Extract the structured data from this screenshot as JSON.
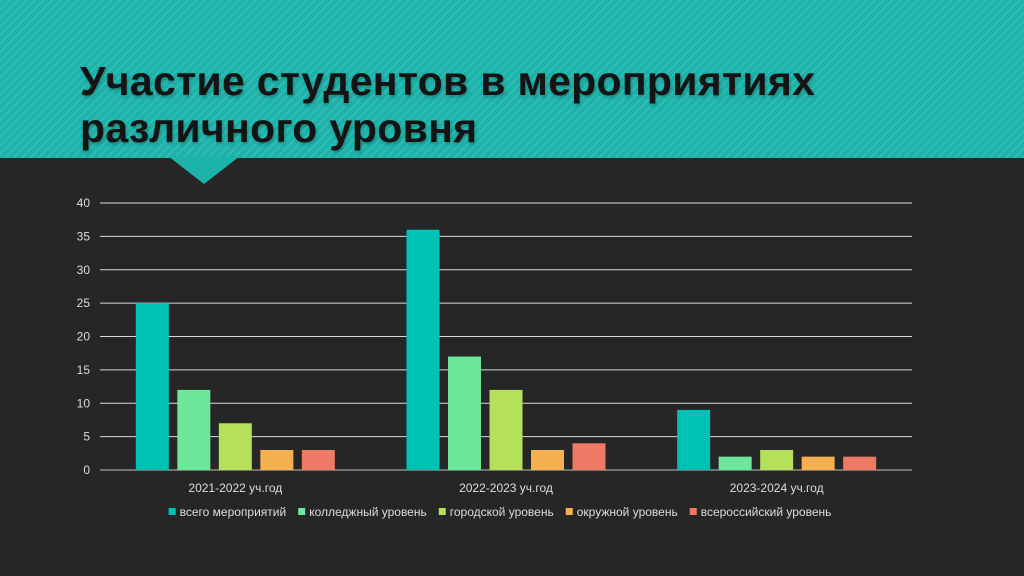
{
  "slide": {
    "title": "Участие студентов в мероприятиях различного уровня"
  },
  "colors": {
    "header_bg": "#1bb3aa",
    "background": "#262626",
    "text": "#dddddd"
  },
  "chart_data": {
    "type": "bar",
    "title": "",
    "xlabel": "",
    "ylabel": "",
    "ylim": [
      0,
      40
    ],
    "yticks": [
      0,
      5,
      10,
      15,
      20,
      25,
      30,
      35,
      40
    ],
    "grid": true,
    "legend_position": "bottom",
    "categories": [
      "2021-2022 уч.год",
      "2022-2023 уч.год",
      "2023-2024 уч.год"
    ],
    "series": [
      {
        "name": "всего мероприятий",
        "color": "#00c2b4",
        "values": [
          25,
          36,
          9
        ]
      },
      {
        "name": "колледжный уровень",
        "color": "#6de89a",
        "values": [
          12,
          17,
          2
        ]
      },
      {
        "name": "городской уровень",
        "color": "#b5e05a",
        "values": [
          7,
          12,
          3
        ]
      },
      {
        "name": "окружной уровень",
        "color": "#f5b04f",
        "values": [
          3,
          3,
          2
        ]
      },
      {
        "name": "всероссийский уровень",
        "color": "#ee7a66",
        "values": [
          3,
          4,
          2
        ]
      }
    ]
  }
}
